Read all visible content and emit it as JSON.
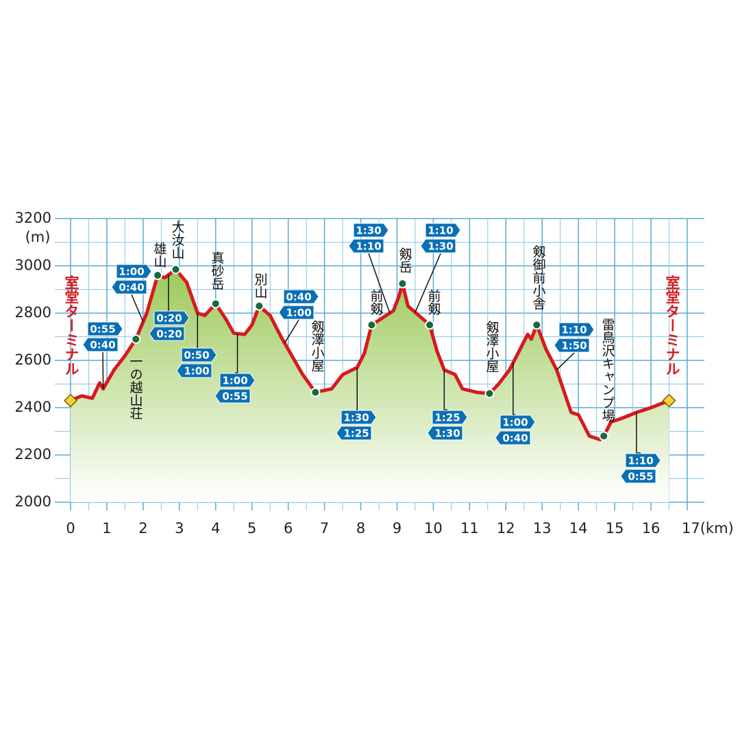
{
  "chart_data": {
    "type": "area",
    "y_unit": "(m)",
    "xlim": [
      0,
      17
    ],
    "ylim": [
      2000,
      3200
    ],
    "xticks": [
      0,
      1,
      2,
      3,
      4,
      5,
      6,
      7,
      8,
      9,
      10,
      11,
      12,
      13,
      14,
      15,
      16,
      {
        "value": 17,
        "label": "17(km)"
      }
    ],
    "yticks": [
      2000,
      2200,
      2400,
      2600,
      2800,
      3000,
      3200
    ],
    "grid": true,
    "color": "#d7191f",
    "x": [
      0,
      0.3,
      0.6,
      0.8,
      0.9,
      1.2,
      1.5,
      1.8,
      2.1,
      2.4,
      2.6,
      2.9,
      3.2,
      3.5,
      3.7,
      4.0,
      4.3,
      4.5,
      4.8,
      5.0,
      5.2,
      5.5,
      5.8,
      6.1,
      6.4,
      6.75,
      7.2,
      7.5,
      7.9,
      8.1,
      8.3,
      8.6,
      8.9,
      9.05,
      9.15,
      9.3,
      9.6,
      9.9,
      10.1,
      10.3,
      10.6,
      10.8,
      11.2,
      11.55,
      11.8,
      12.1,
      12.3,
      12.6,
      12.7,
      12.85,
      13.1,
      13.4,
      13.6,
      13.8,
      14.0,
      14.3,
      14.6,
      14.7,
      14.9,
      15.2,
      15.6,
      16.0,
      16.5
    ],
    "values": [
      2430,
      2450,
      2440,
      2505,
      2480,
      2560,
      2620,
      2690,
      2800,
      2960,
      2950,
      2985,
      2930,
      2800,
      2790,
      2840,
      2770,
      2715,
      2710,
      2750,
      2830,
      2790,
      2700,
      2620,
      2540,
      2465,
      2480,
      2540,
      2570,
      2630,
      2750,
      2780,
      2810,
      2870,
      2925,
      2830,
      2790,
      2750,
      2640,
      2560,
      2540,
      2480,
      2465,
      2460,
      2500,
      2560,
      2620,
      2710,
      2690,
      2750,
      2650,
      2560,
      2470,
      2380,
      2370,
      2280,
      2265,
      2280,
      2340,
      2355,
      2380,
      2400,
      2430
    ],
    "waypoints": [
      {
        "name": "室堂ターミナル",
        "km": 0,
        "elevation": 2430
      },
      {
        "name": "一の越山荘",
        "km": 1.8,
        "elevation": 2690
      },
      {
        "name": "雄山",
        "km": 2.4,
        "elevation": 2960
      },
      {
        "name": "大汝山",
        "km": 2.9,
        "elevation": 2985
      },
      {
        "name": "真砂岳",
        "km": 4.0,
        "elevation": 2840
      },
      {
        "name": "別山",
        "km": 5.2,
        "elevation": 2830
      },
      {
        "name": "剱澤小屋",
        "km": 6.75,
        "elevation": 2465
      },
      {
        "name": "前剱",
        "km": 8.3,
        "elevation": 2750
      },
      {
        "name": "剱岳",
        "km": 9.15,
        "elevation": 2925
      },
      {
        "name": "前剱",
        "km": 9.9,
        "elevation": 2750
      },
      {
        "name": "剱澤小屋",
        "km": 11.55,
        "elevation": 2460
      },
      {
        "name": "剱御前小舎",
        "km": 12.85,
        "elevation": 2750
      },
      {
        "name": "雷鳥沢キャンプ場",
        "km": 14.7,
        "elevation": 2280
      },
      {
        "name": "室堂ターミナル",
        "km": 16.5,
        "elevation": 2430
      }
    ],
    "times": [
      [
        "0:55",
        "0:40"
      ],
      [
        "1:00",
        "0:40"
      ],
      [
        "0:20",
        "0:20"
      ],
      [
        "0:50",
        "1:00"
      ],
      [
        "1:00",
        "0:55"
      ],
      [
        "0:40",
        "1:00"
      ],
      [
        "1:30",
        "1:25"
      ],
      [
        "1:30",
        "1:10"
      ],
      [
        "1:10",
        "1:30"
      ],
      [
        "1:25",
        "1:30"
      ],
      [
        "1:00",
        "0:40"
      ],
      [
        "1:10",
        "1:50"
      ],
      [
        "1:10",
        "0:55"
      ]
    ]
  }
}
